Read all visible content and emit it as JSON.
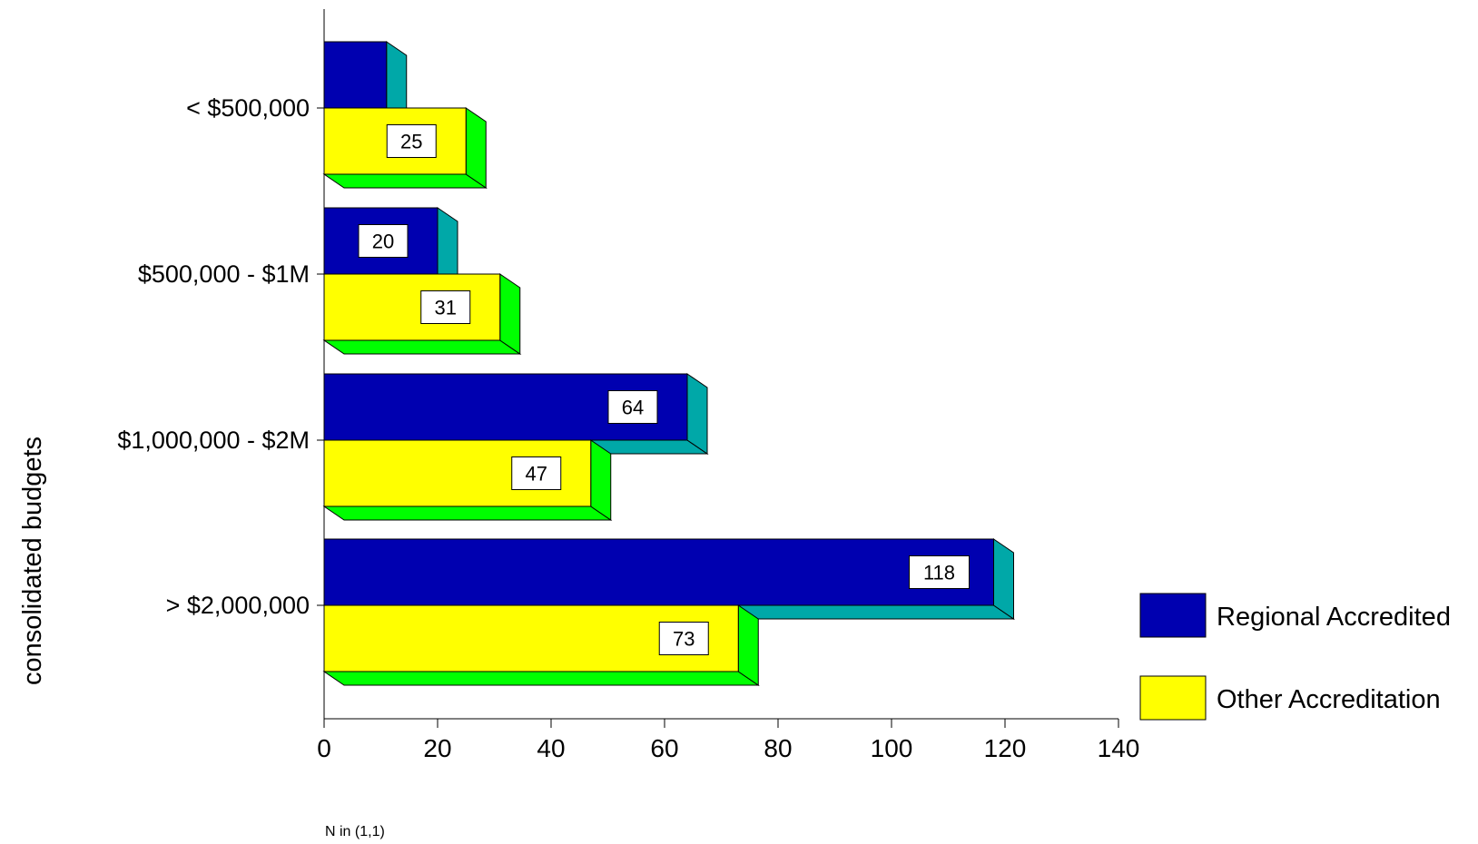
{
  "chart_data": {
    "type": "bar",
    "orientation": "horizontal",
    "categories": [
      "< $500,000",
      "$500,000 - $1M",
      "$1,000,000 - $2M",
      "> $2,000,000"
    ],
    "series": [
      {
        "name": "Regional Accredited",
        "values": [
          11,
          20,
          64,
          118
        ],
        "labels": [
          "",
          "20",
          "64",
          "118"
        ],
        "color": "#0000B0",
        "depth_color": "#00A8A8"
      },
      {
        "name": "Other Accreditation",
        "values": [
          25,
          31,
          47,
          73
        ],
        "labels": [
          "25",
          "31",
          "47",
          "73"
        ],
        "color": "#FFFF00",
        "depth_color": "#00FF00"
      }
    ],
    "xlim": [
      0,
      140
    ],
    "xticks": [
      0,
      20,
      40,
      60,
      80,
      100,
      120,
      140
    ],
    "ylabel": "consolidated budgets",
    "xlabel": "",
    "legend_position": "bottom-right",
    "grid": false
  },
  "footnote": "N in (1,1)"
}
